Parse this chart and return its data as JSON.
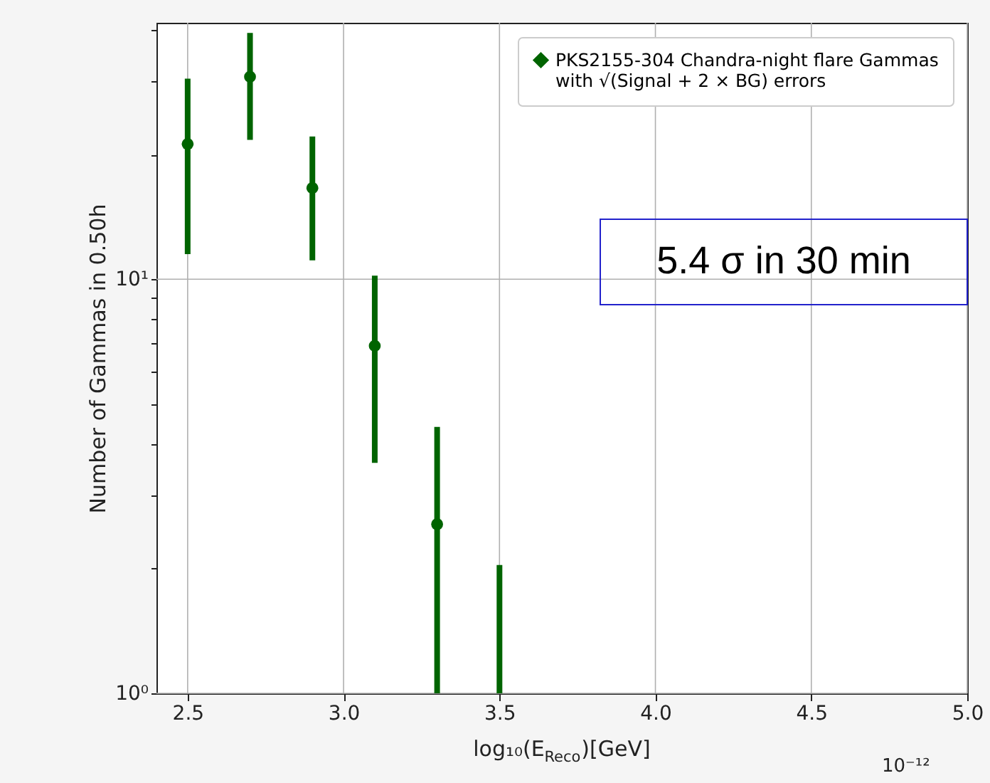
{
  "chart_data": {
    "type": "scatter",
    "xlabel": "log₁₀(E$_{Reco}$)[GeV]",
    "ylabel": "Number of Gammas in 0.50h",
    "x": [
      2.5,
      2.7,
      2.9,
      3.1,
      3.3
    ],
    "series": [
      {
        "name": "PKS2155-304 Chandra-night flare Gammas\nwith √(Signal + 2 × BG) errors",
        "color": "#006400",
        "values": [
          21.2,
          30.8,
          16.6,
          6.9,
          2.56
        ],
        "errors": [
          [
            11.5,
            30.5
          ],
          [
            21.7,
            39.3
          ],
          [
            11.1,
            22.1
          ],
          [
            3.6,
            10.2
          ],
          [
            1.0,
            4.4
          ]
        ]
      },
      {
        "type": "line",
        "color": "#006400",
        "x": [
          3.5,
          3.5
        ],
        "values": [
          1.0,
          2.04
        ],
        "marker": "none"
      }
    ],
    "xlim": [
      2.4,
      5.0
    ],
    "xticks": [
      2.5,
      {
        "value": 3,
        "label": "3.0"
      },
      3.5,
      {
        "value": 4,
        "label": "4.0"
      },
      4.5,
      {
        "value": 5,
        "label": "5.0"
      }
    ],
    "ylim": [
      1,
      41.6
    ],
    "yticks": [
      {
        "value": 1,
        "label": "10⁰"
      },
      {
        "value": 2,
        "label": null
      },
      {
        "value": 3,
        "label": null
      },
      {
        "value": 4,
        "label": null
      },
      {
        "value": 5,
        "label": null
      },
      {
        "value": 6,
        "label": null
      },
      {
        "value": 7,
        "label": null
      },
      {
        "value": 8,
        "label": null
      },
      {
        "value": 9,
        "label": null
      },
      {
        "value": 10,
        "label": "10¹"
      },
      {
        "value": 20,
        "label": null
      },
      {
        "value": 30,
        "label": null
      },
      {
        "value": 40,
        "label": null
      }
    ],
    "log": "y",
    "grid": true,
    "legend": "top right",
    "marker": "circle",
    "annotations": [
      "5.4 σ in 30 min",
      "10⁻¹²"
    ]
  }
}
